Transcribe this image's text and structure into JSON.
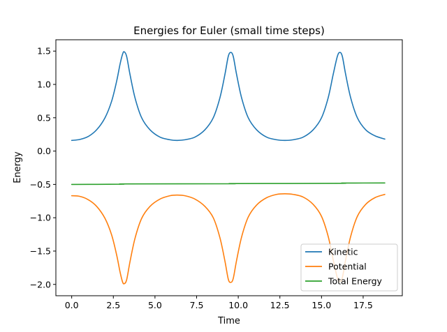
{
  "chart_data": {
    "type": "line",
    "title": "Energies for Euler (small time steps)",
    "xlabel": "Time",
    "ylabel": "Energy",
    "xlim": [
      -0.95,
      19.85
    ],
    "ylim": [
      -2.17,
      1.67
    ],
    "xticks": [
      0.0,
      2.5,
      5.0,
      7.5,
      10.0,
      12.5,
      15.0,
      17.5
    ],
    "xtick_labels": [
      "0.0",
      "2.5",
      "5.0",
      "7.5",
      "10.0",
      "12.5",
      "15.0",
      "17.5"
    ],
    "yticks": [
      1.5,
      1.0,
      0.5,
      0.0,
      -0.5,
      -1.0,
      -1.5,
      -2.0
    ],
    "ytick_labels": [
      "1.5",
      "1.0",
      "0.5",
      "0.0",
      "−0.5",
      "−1.0",
      "−1.5",
      "−2.0"
    ],
    "grid": false,
    "legend_position": "bottom-right",
    "series": [
      {
        "name": "Kinetic",
        "color": "#1f77b4",
        "points": [
          [
            0.0,
            0.16
          ],
          [
            0.5,
            0.175
          ],
          [
            1.0,
            0.22
          ],
          [
            1.5,
            0.32
          ],
          [
            2.0,
            0.5
          ],
          [
            2.4,
            0.75
          ],
          [
            2.7,
            1.05
          ],
          [
            2.9,
            1.3
          ],
          [
            3.05,
            1.45
          ],
          [
            3.15,
            1.49
          ],
          [
            3.3,
            1.42
          ],
          [
            3.5,
            1.15
          ],
          [
            3.8,
            0.8
          ],
          [
            4.2,
            0.5
          ],
          [
            4.7,
            0.32
          ],
          [
            5.3,
            0.21
          ],
          [
            5.9,
            0.17
          ],
          [
            6.3,
            0.16
          ],
          [
            6.8,
            0.17
          ],
          [
            7.4,
            0.21
          ],
          [
            8.0,
            0.32
          ],
          [
            8.5,
            0.5
          ],
          [
            8.9,
            0.8
          ],
          [
            9.2,
            1.15
          ],
          [
            9.4,
            1.42
          ],
          [
            9.55,
            1.48
          ],
          [
            9.7,
            1.42
          ],
          [
            9.9,
            1.15
          ],
          [
            10.2,
            0.8
          ],
          [
            10.6,
            0.5
          ],
          [
            11.1,
            0.32
          ],
          [
            11.7,
            0.21
          ],
          [
            12.3,
            0.17
          ],
          [
            12.8,
            0.16
          ],
          [
            13.3,
            0.17
          ],
          [
            13.9,
            0.21
          ],
          [
            14.5,
            0.32
          ],
          [
            15.0,
            0.5
          ],
          [
            15.4,
            0.8
          ],
          [
            15.7,
            1.15
          ],
          [
            15.95,
            1.42
          ],
          [
            16.1,
            1.48
          ],
          [
            16.25,
            1.42
          ],
          [
            16.45,
            1.15
          ],
          [
            16.75,
            0.8
          ],
          [
            17.15,
            0.5
          ],
          [
            17.65,
            0.32
          ],
          [
            18.2,
            0.23
          ],
          [
            18.8,
            0.18
          ]
        ]
      },
      {
        "name": "Potential",
        "color": "#ff7f0e",
        "points": [
          [
            0.0,
            -0.67
          ],
          [
            0.5,
            -0.68
          ],
          [
            1.0,
            -0.73
          ],
          [
            1.5,
            -0.83
          ],
          [
            2.0,
            -1.01
          ],
          [
            2.4,
            -1.26
          ],
          [
            2.7,
            -1.56
          ],
          [
            2.9,
            -1.81
          ],
          [
            3.05,
            -1.96
          ],
          [
            3.15,
            -1.99
          ],
          [
            3.3,
            -1.93
          ],
          [
            3.5,
            -1.66
          ],
          [
            3.8,
            -1.31
          ],
          [
            4.2,
            -1.01
          ],
          [
            4.7,
            -0.83
          ],
          [
            5.3,
            -0.72
          ],
          [
            5.9,
            -0.67
          ],
          [
            6.3,
            -0.66
          ],
          [
            6.8,
            -0.67
          ],
          [
            7.4,
            -0.72
          ],
          [
            8.0,
            -0.83
          ],
          [
            8.5,
            -1.0
          ],
          [
            8.9,
            -1.3
          ],
          [
            9.2,
            -1.65
          ],
          [
            9.4,
            -1.92
          ],
          [
            9.55,
            -1.97
          ],
          [
            9.7,
            -1.91
          ],
          [
            9.9,
            -1.64
          ],
          [
            10.2,
            -1.29
          ],
          [
            10.6,
            -0.99
          ],
          [
            11.1,
            -0.81
          ],
          [
            11.7,
            -0.7
          ],
          [
            12.3,
            -0.65
          ],
          [
            12.8,
            -0.64
          ],
          [
            13.3,
            -0.65
          ],
          [
            13.9,
            -0.69
          ],
          [
            14.5,
            -0.8
          ],
          [
            15.0,
            -0.98
          ],
          [
            15.4,
            -1.28
          ],
          [
            15.7,
            -1.63
          ],
          [
            15.95,
            -1.9
          ],
          [
            16.1,
            -1.96
          ],
          [
            16.25,
            -1.9
          ],
          [
            16.45,
            -1.63
          ],
          [
            16.75,
            -1.28
          ],
          [
            17.15,
            -0.98
          ],
          [
            17.65,
            -0.8
          ],
          [
            18.2,
            -0.7
          ],
          [
            18.8,
            -0.65
          ]
        ]
      },
      {
        "name": "Total Energy",
        "color": "#2ca02c",
        "points": [
          [
            0.0,
            -0.5
          ],
          [
            3.0,
            -0.497
          ],
          [
            3.3,
            -0.493
          ],
          [
            9.5,
            -0.49
          ],
          [
            9.8,
            -0.487
          ],
          [
            16.0,
            -0.484
          ],
          [
            16.3,
            -0.48
          ],
          [
            18.8,
            -0.478
          ]
        ]
      }
    ]
  }
}
